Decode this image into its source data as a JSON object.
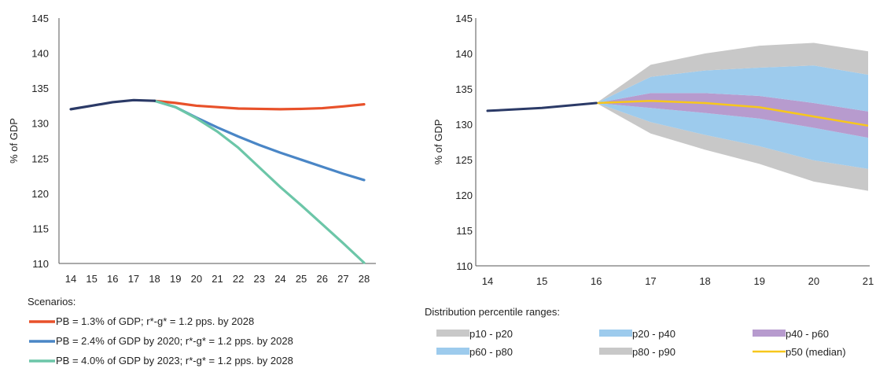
{
  "chart_data": [
    {
      "type": "line",
      "ylabel": "% of GDP",
      "xlabel": "",
      "title": "",
      "ylim": [
        110,
        145
      ],
      "yticks": [
        110,
        115,
        120,
        125,
        130,
        135,
        140,
        145
      ],
      "x": [
        14,
        15,
        16,
        17,
        18,
        19,
        20,
        21,
        22,
        23,
        24,
        25,
        26,
        27,
        28
      ],
      "grid": false,
      "legend_title": "Scenarios:",
      "legend_position": "bottom",
      "history": {
        "name": "",
        "color": "#2b3a67",
        "x": [
          14,
          15,
          16,
          17,
          18
        ],
        "values": [
          132.0,
          132.5,
          133.0,
          133.3,
          133.2
        ]
      },
      "series": [
        {
          "name": "PB = 1.3% of GDP; r*-g* = 1.2 pps. by 2028",
          "color": "#e8512a",
          "x": [
            18,
            19,
            20,
            21,
            22,
            23,
            24,
            25,
            26,
            27,
            28
          ],
          "values": [
            133.2,
            132.9,
            132.5,
            132.3,
            132.1,
            132.05,
            132.0,
            132.05,
            132.15,
            132.4,
            132.7
          ]
        },
        {
          "name": "PB = 2.4% of GDP by 2020; r*-g* = 1.2 pps. by 2028",
          "color": "#4a86c6",
          "x": [
            18,
            19,
            20,
            21,
            22,
            23,
            24,
            25,
            26,
            27,
            28
          ],
          "values": [
            133.2,
            132.3,
            130.8,
            129.4,
            128.1,
            126.9,
            125.8,
            124.8,
            123.8,
            122.8,
            121.9
          ]
        },
        {
          "name": "PB = 4.0% of GDP by 2023; r*-g* = 1.2 pps. by 2028",
          "color": "#6cc6a8",
          "x": [
            18,
            19,
            20,
            21,
            22,
            23,
            24,
            25,
            26,
            27,
            28
          ],
          "values": [
            133.2,
            132.3,
            130.7,
            128.8,
            126.5,
            123.7,
            120.9,
            118.3,
            115.6,
            112.9,
            110.1
          ]
        }
      ]
    },
    {
      "type": "area",
      "ylabel": "% of GDP",
      "xlabel": "",
      "title": "",
      "ylim": [
        110,
        145
      ],
      "yticks": [
        110,
        115,
        120,
        125,
        130,
        135,
        140,
        145
      ],
      "xticks": [
        14,
        15,
        16,
        17,
        18,
        19,
        20,
        21
      ],
      "grid": false,
      "legend_title": "Distribution percentile ranges:",
      "legend_position": "bottom",
      "history": {
        "name": "",
        "color": "#2b3a67",
        "x": [
          14,
          15,
          16
        ],
        "values": [
          131.9,
          132.3,
          133.0
        ]
      },
      "fan_x": [
        16,
        17,
        18,
        19,
        20,
        21
      ],
      "percentiles": {
        "p10": [
          133.0,
          128.7,
          126.4,
          124.4,
          121.9,
          120.6
        ],
        "p20": [
          133.0,
          130.3,
          128.5,
          126.9,
          124.9,
          123.7
        ],
        "p40": [
          133.0,
          132.3,
          131.6,
          130.8,
          129.5,
          128.1
        ],
        "p60": [
          133.0,
          134.4,
          134.4,
          134.0,
          133.0,
          131.8
        ],
        "p80": [
          133.0,
          136.7,
          137.6,
          138.0,
          138.3,
          137.0
        ],
        "p90": [
          133.0,
          138.4,
          140.0,
          141.1,
          141.5,
          140.3
        ],
        "p50": [
          133.0,
          133.3,
          133.0,
          132.4,
          131.1,
          129.8
        ]
      },
      "bands": [
        {
          "name": "p10 - p20",
          "lower": "p10",
          "upper": "p20",
          "color": "#c8c8c8"
        },
        {
          "name": "p20 - p40",
          "lower": "p20",
          "upper": "p40",
          "color": "#9dcbed"
        },
        {
          "name": "p40 - p60",
          "lower": "p40",
          "upper": "p60",
          "color": "#b79bce"
        },
        {
          "name": "p60 - p80",
          "lower": "p60",
          "upper": "p80",
          "color": "#9dcbed"
        },
        {
          "name": "p80 - p90",
          "lower": "p80",
          "upper": "p90",
          "color": "#c8c8c8"
        }
      ],
      "median": {
        "name": "p50 (median)",
        "key": "p50",
        "color": "#f7c71c"
      }
    }
  ]
}
